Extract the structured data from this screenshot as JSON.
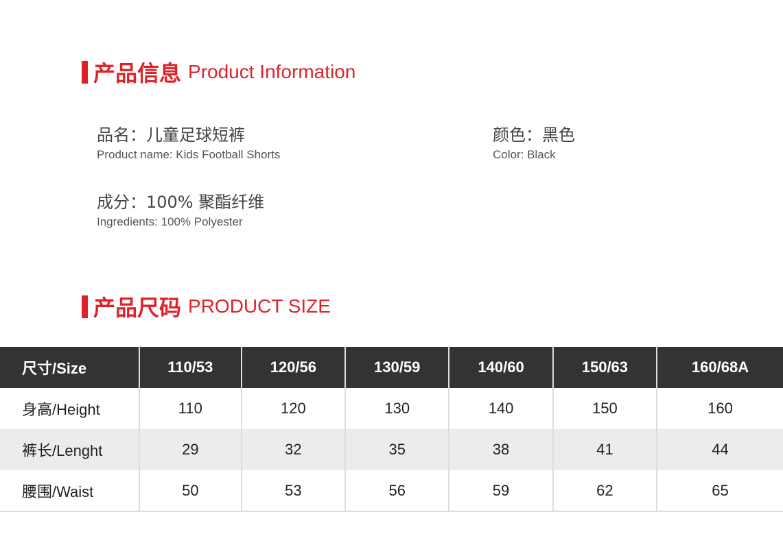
{
  "info_section": {
    "title_zh": "产品信息",
    "title_en": "Product Information"
  },
  "items": [
    {
      "zh": "品名：儿童足球短裤",
      "en": "Product name: Kids Football Shorts"
    },
    {
      "zh": "颜色：黑色",
      "en": "Color: Black"
    },
    {
      "zh": "成分：100% 聚酯纤维",
      "en": "Ingredients: 100% Polyester"
    }
  ],
  "size_section": {
    "title_zh": "产品尺码",
    "title_en": "PRODUCT SIZE"
  },
  "table": {
    "headers": [
      "尺寸/Size",
      "110/53",
      "120/56",
      "130/59",
      "140/60",
      "150/63",
      "160/68A"
    ],
    "rows": [
      [
        "身高/Height",
        "110",
        "120",
        "130",
        "140",
        "150",
        "160"
      ],
      [
        "裤长/Lenght",
        "29",
        "32",
        "35",
        "38",
        "41",
        "44"
      ],
      [
        "腰围/Waist",
        "50",
        "53",
        "56",
        "59",
        "62",
        "65"
      ]
    ]
  },
  "colors": {
    "accent": "#e02228",
    "header_bg": "#333333",
    "alt_row": "#ececec"
  }
}
